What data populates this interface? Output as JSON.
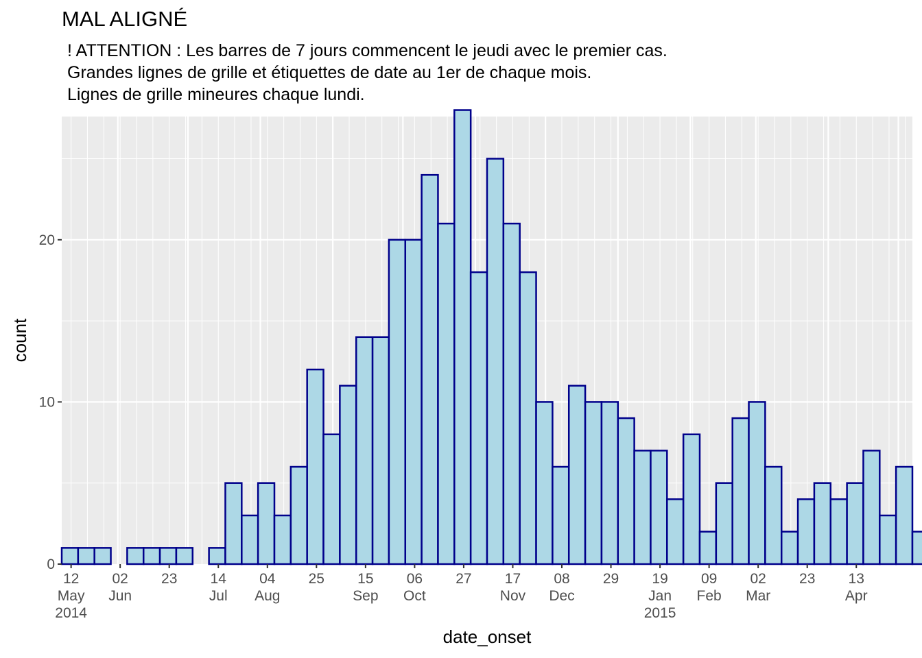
{
  "chart_data": {
    "type": "bar",
    "title": "MAL ALIGNÉ",
    "subtitle_lines": [
      "! ATTENTION : Les barres de 7 jours commencent le jeudi avec le premier cas.",
      "Grandes lignes de grille et étiquettes de date au 1er de chaque mois.",
      "Lignes de grille mineures chaque lundi."
    ],
    "xlabel": "date_onset",
    "ylabel": "count",
    "ylim": [
      0,
      27.6
    ],
    "y_ticks": [
      0,
      10,
      20
    ],
    "bin_width_days": 7,
    "x_range": [
      "2014-05-08",
      "2015-05-07"
    ],
    "x_tick_labels": [
      {
        "date": "2014-05-12",
        "lines": [
          "12",
          "May",
          "2014"
        ]
      },
      {
        "date": "2014-06-02",
        "lines": [
          "02",
          "Jun"
        ]
      },
      {
        "date": "2014-06-23",
        "lines": [
          "23"
        ]
      },
      {
        "date": "2014-07-14",
        "lines": [
          "14",
          "Jul"
        ]
      },
      {
        "date": "2014-08-04",
        "lines": [
          "04",
          "Aug"
        ]
      },
      {
        "date": "2014-08-25",
        "lines": [
          "25"
        ]
      },
      {
        "date": "2014-09-15",
        "lines": [
          "15",
          "Sep"
        ]
      },
      {
        "date": "2014-10-06",
        "lines": [
          "06",
          "Oct"
        ]
      },
      {
        "date": "2014-10-27",
        "lines": [
          "27"
        ]
      },
      {
        "date": "2014-11-17",
        "lines": [
          "17",
          "Nov"
        ]
      },
      {
        "date": "2014-12-08",
        "lines": [
          "08",
          "Dec"
        ]
      },
      {
        "date": "2014-12-29",
        "lines": [
          "29"
        ]
      },
      {
        "date": "2015-01-19",
        "lines": [
          "19",
          "Jan",
          "2015"
        ]
      },
      {
        "date": "2015-02-09",
        "lines": [
          "09",
          "Feb"
        ]
      },
      {
        "date": "2015-03-02",
        "lines": [
          "02",
          "Mar"
        ]
      },
      {
        "date": "2015-03-23",
        "lines": [
          "23"
        ]
      },
      {
        "date": "2015-04-13",
        "lines": [
          "13",
          "Apr"
        ]
      }
    ],
    "bin_start": "2014-05-08",
    "values": [
      1,
      1,
      1,
      0,
      1,
      1,
      1,
      1,
      0,
      1,
      5,
      3,
      5,
      3,
      6,
      12,
      8,
      11,
      14,
      14,
      20,
      20,
      24,
      21,
      28,
      18,
      25,
      21,
      18,
      10,
      6,
      11,
      10,
      10,
      9,
      7,
      7,
      4,
      8,
      2,
      5,
      9,
      10,
      6,
      2,
      4,
      5,
      4,
      5,
      7,
      3,
      6,
      2
    ],
    "colors": {
      "panel": "#ebebeb",
      "grid": "#ffffff",
      "bar_fill": "#add8e6",
      "bar_outline": "#00008b",
      "tick_text": "#4d4d4d"
    }
  }
}
